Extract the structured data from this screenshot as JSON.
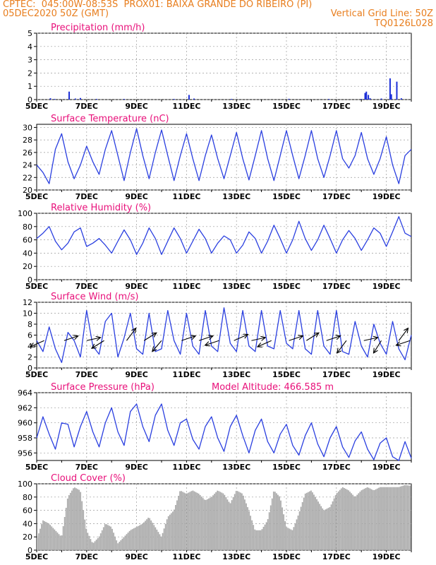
{
  "header": {
    "line1_left": "CPTEC:  045:00W-08:53S  PROX01: BAIXA GRANDE DO RIBEIRO (PI)",
    "line2_left": "05DEC2020 50Z (GMT)",
    "line2_right": "Vertical Grid Line: 50Z",
    "line3_right": "TQ0126L028"
  },
  "colors": {
    "header": "#e87e1e",
    "title": "#e8107a",
    "line": "#2a3fe0",
    "bar_precip": "#1c2fd8",
    "cloud": "#a9a9a9",
    "grid": "#9a9a9a",
    "arrow": "#000000"
  },
  "x_axis": {
    "tick_labels": [
      "5DEC",
      "7DEC",
      "9DEC",
      "11DEC",
      "13DEC",
      "15DEC",
      "17DEC",
      "19DEC"
    ],
    "tick_days": [
      0,
      2,
      4,
      6,
      8,
      10,
      12,
      14
    ],
    "start_date": "2020-12-05"
  },
  "chart_data": [
    {
      "type": "bar",
      "title": "Precipitation (mm/h)",
      "ylim": [
        0,
        5
      ],
      "yticks": [
        0,
        1,
        2,
        3,
        4,
        5
      ],
      "x_range_days": [
        0,
        15
      ],
      "points": [
        {
          "day": 0.55,
          "value": 0.1
        },
        {
          "day": 0.72,
          "value": 0.05
        },
        {
          "day": 1.3,
          "value": 0.6
        },
        {
          "day": 1.55,
          "value": 0.08
        },
        {
          "day": 1.75,
          "value": 0.12
        },
        {
          "day": 2.4,
          "value": 0.05
        },
        {
          "day": 3.5,
          "value": 0.05
        },
        {
          "day": 5.5,
          "value": 0.05
        },
        {
          "day": 6.1,
          "value": 0.35
        },
        {
          "day": 6.3,
          "value": 0.08
        },
        {
          "day": 7.8,
          "value": 0.05
        },
        {
          "day": 10.1,
          "value": 0.06
        },
        {
          "day": 11.7,
          "value": 0.05
        },
        {
          "day": 13.0,
          "value": 0.05
        },
        {
          "day": 13.15,
          "value": 0.5
        },
        {
          "day": 13.2,
          "value": 0.6
        },
        {
          "day": 13.28,
          "value": 0.35
        },
        {
          "day": 13.35,
          "value": 0.1
        },
        {
          "day": 13.8,
          "value": 0.08
        },
        {
          "day": 14.15,
          "value": 1.6
        },
        {
          "day": 14.2,
          "value": 0.4
        },
        {
          "day": 14.42,
          "value": 1.35
        },
        {
          "day": 14.6,
          "value": 0.1
        }
      ]
    },
    {
      "type": "line",
      "title": "Surface Temperature (nC)",
      "ylim": [
        20,
        30.5
      ],
      "yticks": [
        20,
        22,
        24,
        26,
        28,
        30
      ],
      "x_range_days": [
        0,
        15
      ],
      "x_days": [
        0,
        0.25,
        0.5,
        0.75,
        1.0,
        1.25,
        1.5,
        1.75,
        2.0,
        2.25,
        2.5,
        2.75,
        3.0,
        3.25,
        3.5,
        3.75,
        4.0,
        4.25,
        4.5,
        4.75,
        5.0,
        5.25,
        5.5,
        5.75,
        6.0,
        6.25,
        6.5,
        6.75,
        7.0,
        7.25,
        7.5,
        7.75,
        8.0,
        8.25,
        8.5,
        8.75,
        9.0,
        9.25,
        9.5,
        9.75,
        10.0,
        10.25,
        10.5,
        10.75,
        11.0,
        11.25,
        11.5,
        11.75,
        12.0,
        12.25,
        12.5,
        12.75,
        13.0,
        13.25,
        13.5,
        13.75,
        14.0,
        14.25,
        14.5,
        14.75,
        15.0
      ],
      "values": [
        24.0,
        22.8,
        21.0,
        26.5,
        29.0,
        24.5,
        21.8,
        24.0,
        27.0,
        24.5,
        22.5,
        26.5,
        29.5,
        25.5,
        21.5,
        26.0,
        29.8,
        25.5,
        21.8,
        26.0,
        29.6,
        25.5,
        21.5,
        25.5,
        29.0,
        25.0,
        21.5,
        25.5,
        28.8,
        25.0,
        21.8,
        25.5,
        29.2,
        25.0,
        21.6,
        25.5,
        29.5,
        25.0,
        21.5,
        25.5,
        29.5,
        25.5,
        21.8,
        25.5,
        29.5,
        25.0,
        22.0,
        25.5,
        29.5,
        25.0,
        23.5,
        25.5,
        29.2,
        25.0,
        22.5,
        25.0,
        28.5,
        24.0,
        21.0,
        25.5,
        26.5
      ]
    },
    {
      "type": "line",
      "title": "Relative Humidity (%)",
      "ylim": [
        0,
        100
      ],
      "yticks": [
        0,
        20,
        40,
        60,
        80,
        100
      ],
      "x_range_days": [
        0,
        15
      ],
      "x_days": [
        0,
        0.25,
        0.5,
        0.75,
        1.0,
        1.25,
        1.5,
        1.75,
        2.0,
        2.25,
        2.5,
        2.75,
        3.0,
        3.25,
        3.5,
        3.75,
        4.0,
        4.25,
        4.5,
        4.75,
        5.0,
        5.25,
        5.5,
        5.75,
        6.0,
        6.25,
        6.5,
        6.75,
        7.0,
        7.25,
        7.5,
        7.75,
        8.0,
        8.25,
        8.5,
        8.75,
        9.0,
        9.25,
        9.5,
        9.75,
        10.0,
        10.25,
        10.5,
        10.75,
        11.0,
        11.25,
        11.5,
        11.75,
        12.0,
        12.25,
        12.5,
        12.75,
        13.0,
        13.25,
        13.5,
        13.75,
        14.0,
        14.25,
        14.5,
        14.75,
        15.0
      ],
      "values": [
        62,
        70,
        80,
        58,
        45,
        55,
        72,
        78,
        50,
        55,
        62,
        52,
        40,
        58,
        75,
        60,
        38,
        55,
        78,
        62,
        38,
        58,
        78,
        62,
        40,
        58,
        76,
        62,
        40,
        55,
        66,
        60,
        40,
        52,
        72,
        62,
        40,
        58,
        82,
        62,
        40,
        60,
        88,
        62,
        44,
        60,
        82,
        62,
        40,
        60,
        74,
        62,
        44,
        60,
        78,
        70,
        50,
        72,
        95,
        70,
        65
      ]
    },
    {
      "type": "line",
      "title": "Surface Wind (m/s)",
      "ylim": [
        0,
        12
      ],
      "yticks": [
        0,
        2,
        4,
        6,
        8,
        10,
        12
      ],
      "x_range_days": [
        0,
        15
      ],
      "x_days": [
        0,
        0.25,
        0.5,
        0.75,
        1.0,
        1.25,
        1.5,
        1.75,
        2.0,
        2.25,
        2.5,
        2.75,
        3.0,
        3.25,
        3.5,
        3.75,
        4.0,
        4.25,
        4.5,
        4.75,
        5.0,
        5.25,
        5.5,
        5.75,
        6.0,
        6.25,
        6.5,
        6.75,
        7.0,
        7.25,
        7.5,
        7.75,
        8.0,
        8.25,
        8.5,
        8.75,
        9.0,
        9.25,
        9.5,
        9.75,
        10.0,
        10.25,
        10.5,
        10.75,
        11.0,
        11.25,
        11.5,
        11.75,
        12.0,
        12.25,
        12.5,
        12.75,
        13.0,
        13.25,
        13.5,
        13.75,
        14.0,
        14.25,
        14.5,
        14.75,
        15.0
      ],
      "values": [
        5.0,
        3.0,
        7.5,
        3.5,
        1.0,
        6.5,
        5.0,
        2.0,
        10.5,
        4.0,
        2.5,
        8.5,
        10.0,
        2.0,
        5.5,
        10.0,
        3.5,
        2.5,
        10.0,
        3.0,
        3.5,
        10.5,
        5.0,
        2.5,
        10.0,
        4.0,
        2.5,
        10.5,
        4.0,
        3.0,
        11.0,
        4.5,
        3.0,
        10.5,
        4.0,
        3.0,
        10.5,
        4.0,
        3.5,
        10.5,
        4.5,
        3.5,
        10.5,
        3.5,
        2.5,
        10.5,
        4.0,
        2.5,
        10.5,
        3.0,
        2.5,
        8.5,
        4.0,
        2.0,
        8.0,
        4.5,
        2.5,
        8.5,
        3.5,
        1.5,
        6.0
      ],
      "arrows": [
        {
          "day": 0.3,
          "u": -0.9,
          "v": -0.4
        },
        {
          "day": 1.1,
          "u": 0.9,
          "v": 0.3
        },
        {
          "day": 2.0,
          "u": 0.9,
          "v": 0.2
        },
        {
          "day": 2.7,
          "u": -0.8,
          "v": -0.5
        },
        {
          "day": 3.6,
          "u": 0.6,
          "v": 0.8
        },
        {
          "day": 4.3,
          "u": 0.8,
          "v": 0.5
        },
        {
          "day": 5.0,
          "u": -0.6,
          "v": -0.7
        },
        {
          "day": 5.8,
          "u": 0.9,
          "v": 0.3
        },
        {
          "day": 6.5,
          "u": 0.9,
          "v": 0.3
        },
        {
          "day": 7.3,
          "u": -0.9,
          "v": -0.3
        },
        {
          "day": 7.9,
          "u": 0.9,
          "v": 0.4
        },
        {
          "day": 8.6,
          "u": 0.9,
          "v": 0.2
        },
        {
          "day": 9.4,
          "u": -0.9,
          "v": -0.4
        },
        {
          "day": 10.1,
          "u": 0.9,
          "v": 0.3
        },
        {
          "day": 10.8,
          "u": 0.8,
          "v": 0.5
        },
        {
          "day": 11.6,
          "u": 0.9,
          "v": 0.3
        },
        {
          "day": 12.4,
          "u": -0.6,
          "v": -0.8
        },
        {
          "day": 13.1,
          "u": 0.9,
          "v": 0.2
        },
        {
          "day": 13.8,
          "u": -0.5,
          "v": -0.8
        },
        {
          "day": 14.5,
          "u": 0.6,
          "v": 0.8
        },
        {
          "day": 14.95,
          "u": -0.9,
          "v": -0.3
        }
      ]
    },
    {
      "type": "line",
      "title": "Surface Pressure (hPa)",
      "annotation": "Model Altitude: 466.585 m",
      "ylim": [
        955,
        964
      ],
      "yticks": [
        956,
        958,
        960,
        962,
        964
      ],
      "x_range_days": [
        0,
        15
      ],
      "x_days": [
        0,
        0.25,
        0.5,
        0.75,
        1.0,
        1.25,
        1.5,
        1.75,
        2.0,
        2.25,
        2.5,
        2.75,
        3.0,
        3.25,
        3.5,
        3.75,
        4.0,
        4.25,
        4.5,
        4.75,
        5.0,
        5.25,
        5.5,
        5.75,
        6.0,
        6.25,
        6.5,
        6.75,
        7.0,
        7.25,
        7.5,
        7.75,
        8.0,
        8.25,
        8.5,
        8.75,
        9.0,
        9.25,
        9.5,
        9.75,
        10.0,
        10.25,
        10.5,
        10.75,
        11.0,
        11.25,
        11.5,
        11.75,
        12.0,
        12.25,
        12.5,
        12.75,
        13.0,
        13.25,
        13.5,
        13.75,
        14.0,
        14.25,
        14.5,
        14.75,
        15.0
      ],
      "values": [
        958.0,
        960.8,
        958.5,
        956.5,
        960.0,
        959.8,
        956.8,
        959.5,
        961.5,
        958.8,
        956.8,
        960.0,
        962.0,
        958.8,
        957.0,
        961.5,
        962.5,
        959.5,
        957.5,
        961.0,
        962.5,
        959.0,
        957.0,
        960.0,
        960.5,
        957.8,
        956.5,
        959.5,
        960.8,
        958.0,
        956.2,
        959.5,
        961.0,
        958.3,
        956.0,
        959.0,
        960.5,
        957.5,
        956.0,
        958.5,
        959.8,
        957.0,
        955.7,
        958.3,
        960.0,
        957.2,
        955.5,
        958.0,
        959.5,
        956.8,
        955.4,
        957.6,
        958.8,
        956.5,
        955.1,
        957.3,
        958.0,
        955.5,
        955.0,
        957.5,
        955.3
      ]
    },
    {
      "type": "area",
      "title": "Cloud Cover (%)",
      "ylim": [
        0,
        100
      ],
      "yticks": [
        0,
        20,
        40,
        60,
        80,
        100
      ],
      "x_range_days": [
        0,
        15
      ],
      "x_days": [
        0,
        0.25,
        0.5,
        0.75,
        1.0,
        1.25,
        1.5,
        1.75,
        2.0,
        2.25,
        2.5,
        2.75,
        3.0,
        3.25,
        3.5,
        3.75,
        4.0,
        4.25,
        4.5,
        4.75,
        5.0,
        5.25,
        5.5,
        5.75,
        6.0,
        6.25,
        6.5,
        6.75,
        7.0,
        7.25,
        7.5,
        7.75,
        8.0,
        8.25,
        8.5,
        8.75,
        9.0,
        9.25,
        9.5,
        9.75,
        10.0,
        10.25,
        10.5,
        10.75,
        11.0,
        11.25,
        11.5,
        11.75,
        12.0,
        12.25,
        12.5,
        12.75,
        13.0,
        13.25,
        13.5,
        13.75,
        14.0,
        14.25,
        14.5,
        14.75,
        15.0
      ],
      "values": [
        15,
        45,
        40,
        30,
        20,
        80,
        95,
        90,
        30,
        10,
        20,
        40,
        35,
        10,
        20,
        30,
        35,
        40,
        50,
        35,
        20,
        50,
        60,
        90,
        85,
        90,
        85,
        75,
        80,
        90,
        85,
        70,
        90,
        85,
        60,
        30,
        30,
        45,
        90,
        80,
        35,
        30,
        55,
        85,
        90,
        75,
        60,
        65,
        85,
        95,
        90,
        80,
        90,
        95,
        90,
        95,
        95,
        95,
        95,
        98,
        97
      ]
    }
  ]
}
